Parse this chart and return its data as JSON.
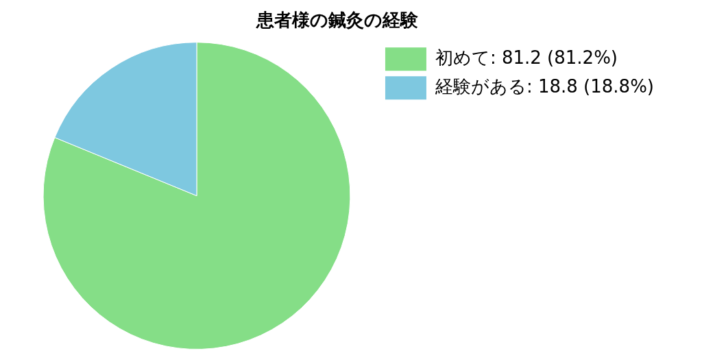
{
  "chart_data": {
    "type": "pie",
    "title": "患者様の鍼灸の経験",
    "categories": [
      "初めて",
      "経験がある"
    ],
    "values": [
      81.2,
      18.8
    ],
    "value_labels": [
      "81.2 (81.2%)",
      "18.8 (18.8%)"
    ],
    "colors": [
      "#85de87",
      "#7ec8e0"
    ],
    "legend": "top right"
  }
}
